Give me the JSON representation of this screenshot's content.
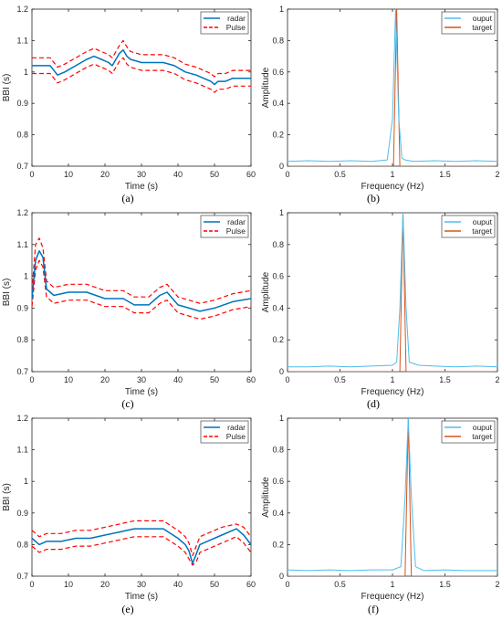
{
  "colors": {
    "radar": "#0072bd",
    "pulse": "#ff0000",
    "ouput": "#4dbeee",
    "target": "#d95319",
    "axis": "#262626",
    "grid": "#000000"
  },
  "captions": [
    "(a)",
    "(b)",
    "(c)",
    "(d)",
    "(e)",
    "(f)"
  ],
  "chart_data": [
    {
      "type": "line",
      "xlabel": "Time (s)",
      "ylabel": "BBI (s)",
      "xlim": [
        0,
        60
      ],
      "ylim": [
        0.7,
        1.2
      ],
      "xticks": [
        0,
        10,
        20,
        30,
        40,
        50,
        60
      ],
      "yticks": [
        0.7,
        0.8,
        0.9,
        1.0,
        1.1,
        1.2
      ],
      "ytick_labels": [
        "0.7",
        "0.8",
        "0.9",
        "1",
        "1.1",
        "1.2"
      ],
      "legend_position": "top-right",
      "series": [
        {
          "name": "radar",
          "style": "solid",
          "x": [
            0,
            3,
            5,
            7,
            9,
            12,
            15,
            17,
            19,
            21,
            22,
            23,
            24,
            25,
            26,
            27,
            30,
            33,
            36,
            39,
            42,
            45,
            47,
            49,
            50,
            51,
            53,
            55,
            57,
            60
          ],
          "y": [
            1.02,
            1.02,
            1.02,
            0.99,
            1.0,
            1.02,
            1.04,
            1.05,
            1.04,
            1.03,
            1.02,
            1.04,
            1.06,
            1.07,
            1.05,
            1.04,
            1.03,
            1.03,
            1.03,
            1.02,
            1.0,
            0.99,
            0.98,
            0.97,
            0.96,
            0.97,
            0.97,
            0.98,
            0.98,
            0.98
          ]
        },
        {
          "name": "Pulse",
          "style": "dashed",
          "x": [
            0,
            3,
            5,
            7,
            9,
            12,
            15,
            17,
            19,
            21,
            22,
            23,
            24,
            25,
            26,
            27,
            30,
            33,
            36,
            39,
            42,
            45,
            47,
            49,
            50,
            51,
            53,
            55,
            57,
            60
          ],
          "y": [
            1.045,
            1.045,
            1.045,
            1.015,
            1.025,
            1.045,
            1.065,
            1.075,
            1.065,
            1.055,
            1.045,
            1.065,
            1.085,
            1.1,
            1.08,
            1.065,
            1.055,
            1.055,
            1.055,
            1.045,
            1.025,
            1.015,
            1.005,
            0.995,
            0.985,
            0.995,
            0.995,
            1.005,
            1.005,
            1.005
          ]
        },
        {
          "name": "",
          "style": "dashed",
          "x": [
            0,
            3,
            5,
            7,
            9,
            12,
            15,
            17,
            19,
            21,
            22,
            23,
            24,
            25,
            26,
            27,
            30,
            33,
            36,
            39,
            42,
            45,
            47,
            49,
            50,
            51,
            53,
            55,
            57,
            60
          ],
          "y": [
            0.995,
            0.995,
            0.995,
            0.965,
            0.975,
            0.995,
            1.015,
            1.025,
            1.015,
            1.005,
            0.995,
            1.015,
            1.035,
            1.045,
            1.025,
            1.015,
            1.005,
            1.005,
            1.005,
            0.995,
            0.975,
            0.965,
            0.955,
            0.945,
            0.935,
            0.945,
            0.945,
            0.955,
            0.955,
            0.955
          ]
        }
      ]
    },
    {
      "type": "line",
      "xlabel": "Frequency (Hz)",
      "ylabel": "Amplitude",
      "xlim": [
        0,
        2
      ],
      "ylim": [
        0,
        1
      ],
      "xticks": [
        0,
        0.5,
        1,
        1.5,
        2
      ],
      "xtick_labels": [
        "0",
        "0.5",
        "1",
        "1.5",
        "2"
      ],
      "yticks": [
        0,
        0.2,
        0.4,
        0.6,
        0.8,
        1
      ],
      "ytick_labels": [
        "0",
        "0.2",
        "0.4",
        "0.6",
        "0.8",
        "1"
      ],
      "legend_position": "top-right",
      "series": [
        {
          "name": "ouput",
          "x": [
            0,
            0.2,
            0.4,
            0.6,
            0.8,
            0.95,
            1.0,
            1.03,
            1.06,
            1.09,
            1.12,
            1.2,
            1.4,
            1.6,
            1.8,
            2.0
          ],
          "y": [
            0.03,
            0.035,
            0.03,
            0.035,
            0.03,
            0.04,
            0.3,
            1.0,
            0.3,
            0.05,
            0.04,
            0.03,
            0.035,
            0.03,
            0.035,
            0.03
          ]
        },
        {
          "name": "target",
          "x": [
            0,
            1.01,
            1.04,
            1.07,
            2
          ],
          "y": [
            0,
            0,
            1,
            0,
            0
          ]
        }
      ]
    },
    {
      "type": "line",
      "xlabel": "Time (s)",
      "ylabel": "BBI (s)",
      "xlim": [
        0,
        60
      ],
      "ylim": [
        0.7,
        1.2
      ],
      "xticks": [
        0,
        10,
        20,
        30,
        40,
        50,
        60
      ],
      "yticks": [
        0.7,
        0.8,
        0.9,
        1.0,
        1.1,
        1.2
      ],
      "ytick_labels": [
        "0.7",
        "0.8",
        "0.9",
        "1",
        "1.1",
        "1.2"
      ],
      "legend_position": "top-right",
      "series": [
        {
          "name": "radar",
          "style": "solid",
          "x": [
            0,
            1,
            2,
            3,
            4,
            6,
            10,
            15,
            20,
            25,
            28,
            32,
            35,
            37,
            40,
            43,
            46,
            50,
            55,
            60
          ],
          "y": [
            0.93,
            1.05,
            1.08,
            1.06,
            0.96,
            0.94,
            0.95,
            0.95,
            0.93,
            0.93,
            0.91,
            0.91,
            0.94,
            0.95,
            0.91,
            0.9,
            0.89,
            0.9,
            0.92,
            0.93
          ]
        },
        {
          "name": "Pulse",
          "style": "dashed",
          "x": [
            0,
            1,
            2,
            3,
            4,
            6,
            10,
            15,
            20,
            25,
            28,
            32,
            35,
            37,
            40,
            43,
            46,
            50,
            55,
            60
          ],
          "y": [
            0.955,
            1.1,
            1.12,
            1.09,
            0.985,
            0.965,
            0.975,
            0.975,
            0.955,
            0.955,
            0.935,
            0.935,
            0.965,
            0.975,
            0.935,
            0.925,
            0.915,
            0.925,
            0.945,
            0.955
          ]
        },
        {
          "name": "",
          "style": "dashed",
          "x": [
            0,
            1,
            2,
            3,
            4,
            6,
            10,
            15,
            20,
            25,
            28,
            32,
            35,
            37,
            40,
            43,
            46,
            50,
            55,
            60
          ],
          "y": [
            0.905,
            1.02,
            1.05,
            1.03,
            0.935,
            0.915,
            0.925,
            0.925,
            0.905,
            0.905,
            0.885,
            0.885,
            0.915,
            0.925,
            0.885,
            0.875,
            0.865,
            0.875,
            0.895,
            0.905
          ]
        }
      ]
    },
    {
      "type": "line",
      "xlabel": "Frequency (Hz)",
      "ylabel": "Amplitude",
      "xlim": [
        0,
        2
      ],
      "ylim": [
        0,
        1
      ],
      "xticks": [
        0,
        0.5,
        1,
        1.5,
        2
      ],
      "xtick_labels": [
        "0",
        "0.5",
        "1",
        "1.5",
        "2"
      ],
      "yticks": [
        0,
        0.2,
        0.4,
        0.6,
        0.8,
        1
      ],
      "ytick_labels": [
        "0",
        "0.2",
        "0.4",
        "0.6",
        "0.8",
        "1"
      ],
      "legend_position": "top-right",
      "series": [
        {
          "name": "ouput",
          "x": [
            0,
            0.2,
            0.4,
            0.6,
            0.8,
            1.0,
            1.04,
            1.07,
            1.1,
            1.13,
            1.16,
            1.25,
            1.4,
            1.6,
            1.8,
            2.0
          ],
          "y": [
            0.03,
            0.03,
            0.035,
            0.03,
            0.035,
            0.04,
            0.06,
            0.4,
            1.0,
            0.4,
            0.06,
            0.04,
            0.035,
            0.03,
            0.035,
            0.03
          ]
        },
        {
          "name": "target",
          "x": [
            0,
            1.07,
            1.1,
            1.13,
            2
          ],
          "y": [
            0,
            0,
            1,
            0,
            0
          ]
        }
      ]
    },
    {
      "type": "line",
      "xlabel": "Time (s)",
      "ylabel": "BBI (s)",
      "xlim": [
        0,
        60
      ],
      "ylim": [
        0.7,
        1.2
      ],
      "xticks": [
        0,
        10,
        20,
        30,
        40,
        50,
        60
      ],
      "yticks": [
        0.7,
        0.8,
        0.9,
        1.0,
        1.1,
        1.2
      ],
      "ytick_labels": [
        "0.7",
        "0.8",
        "0.9",
        "1",
        "1.1",
        "1.2"
      ],
      "legend_position": "top-right",
      "series": [
        {
          "name": "radar",
          "style": "solid",
          "x": [
            0,
            2,
            4,
            8,
            12,
            16,
            20,
            24,
            28,
            32,
            36,
            40,
            42,
            43,
            44,
            45,
            46,
            48,
            52,
            56,
            58,
            60
          ],
          "y": [
            0.82,
            0.8,
            0.81,
            0.81,
            0.82,
            0.82,
            0.83,
            0.84,
            0.85,
            0.85,
            0.85,
            0.82,
            0.8,
            0.78,
            0.74,
            0.77,
            0.8,
            0.81,
            0.83,
            0.85,
            0.83,
            0.8
          ]
        },
        {
          "name": "Pulse",
          "style": "dashed",
          "x": [
            0,
            2,
            4,
            8,
            12,
            16,
            20,
            24,
            28,
            32,
            36,
            40,
            42,
            43,
            44,
            45,
            46,
            48,
            52,
            56,
            58,
            60
          ],
          "y": [
            0.845,
            0.825,
            0.835,
            0.835,
            0.845,
            0.845,
            0.855,
            0.865,
            0.875,
            0.875,
            0.875,
            0.845,
            0.825,
            0.805,
            0.765,
            0.795,
            0.825,
            0.835,
            0.855,
            0.865,
            0.855,
            0.825
          ]
        },
        {
          "name": "",
          "style": "dashed",
          "x": [
            0,
            2,
            4,
            8,
            12,
            16,
            20,
            24,
            28,
            32,
            36,
            40,
            42,
            43,
            44,
            45,
            46,
            48,
            52,
            56,
            58,
            60
          ],
          "y": [
            0.795,
            0.775,
            0.785,
            0.785,
            0.795,
            0.795,
            0.805,
            0.815,
            0.825,
            0.825,
            0.825,
            0.795,
            0.775,
            0.755,
            0.735,
            0.745,
            0.775,
            0.785,
            0.805,
            0.825,
            0.805,
            0.775
          ]
        }
      ]
    },
    {
      "type": "line",
      "xlabel": "Frequency (Hz)",
      "ylabel": "Amplitude",
      "xlim": [
        0,
        2
      ],
      "ylim": [
        0,
        1
      ],
      "xticks": [
        0,
        0.5,
        1,
        1.5,
        2
      ],
      "xtick_labels": [
        "0",
        "0.5",
        "1",
        "1.5",
        "2"
      ],
      "yticks": [
        0,
        0.2,
        0.4,
        0.6,
        0.8,
        1
      ],
      "ytick_labels": [
        "0",
        "0.2",
        "0.4",
        "0.6",
        "0.8",
        "1"
      ],
      "legend_position": "top-right",
      "series": [
        {
          "name": "ouput",
          "x": [
            0,
            0.2,
            0.4,
            0.6,
            0.8,
            1.0,
            1.08,
            1.12,
            1.15,
            1.18,
            1.22,
            1.3,
            1.5,
            1.7,
            2.0
          ],
          "y": [
            0.04,
            0.035,
            0.04,
            0.035,
            0.04,
            0.04,
            0.06,
            0.5,
            1.0,
            0.5,
            0.06,
            0.035,
            0.04,
            0.035,
            0.035
          ]
        },
        {
          "name": "target",
          "x": [
            0,
            1.12,
            1.15,
            1.18,
            2
          ],
          "y": [
            0,
            0,
            1,
            0,
            0
          ]
        }
      ]
    }
  ]
}
